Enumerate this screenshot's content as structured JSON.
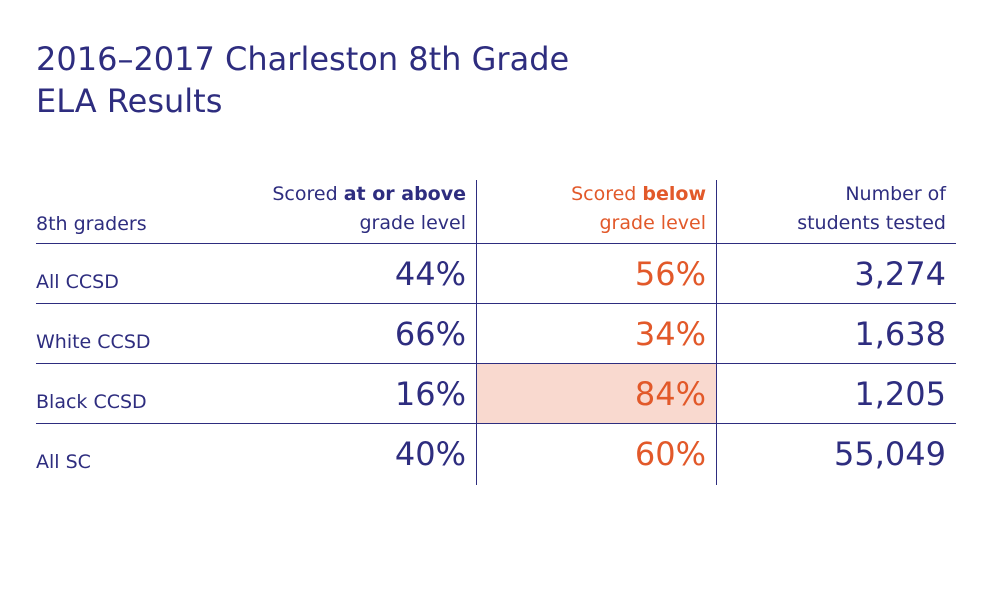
{
  "chart_data": {
    "type": "table",
    "title_line1": "2016–2017 Charleston 8th Grade",
    "title_line2": "ELA Results",
    "headers": {
      "label": "8th graders",
      "col1_pre": "Scored ",
      "col1_bold": "at or above",
      "col1_line2": "grade level",
      "col2_pre": "Scored ",
      "col2_bold": "below",
      "col2_line2": "grade level",
      "col3_line1": "Number of",
      "col3_line2": "students tested"
    },
    "rows": [
      {
        "label": "All CCSD",
        "at_or_above": "44%",
        "below": "56%",
        "tested": "3,274"
      },
      {
        "label": "White CCSD",
        "at_or_above": "66%",
        "below": "34%",
        "tested": "1,638"
      },
      {
        "label": "Black CCSD",
        "at_or_above": "16%",
        "below": "84%",
        "tested": "1,205",
        "highlight_below": true
      },
      {
        "label": "All SC",
        "at_or_above": "40%",
        "below": "60%",
        "tested": "55,049"
      }
    ],
    "colors": {
      "primary": "#2e2d7f",
      "accent": "#e2592a",
      "highlight": "#f9d9cf"
    }
  }
}
